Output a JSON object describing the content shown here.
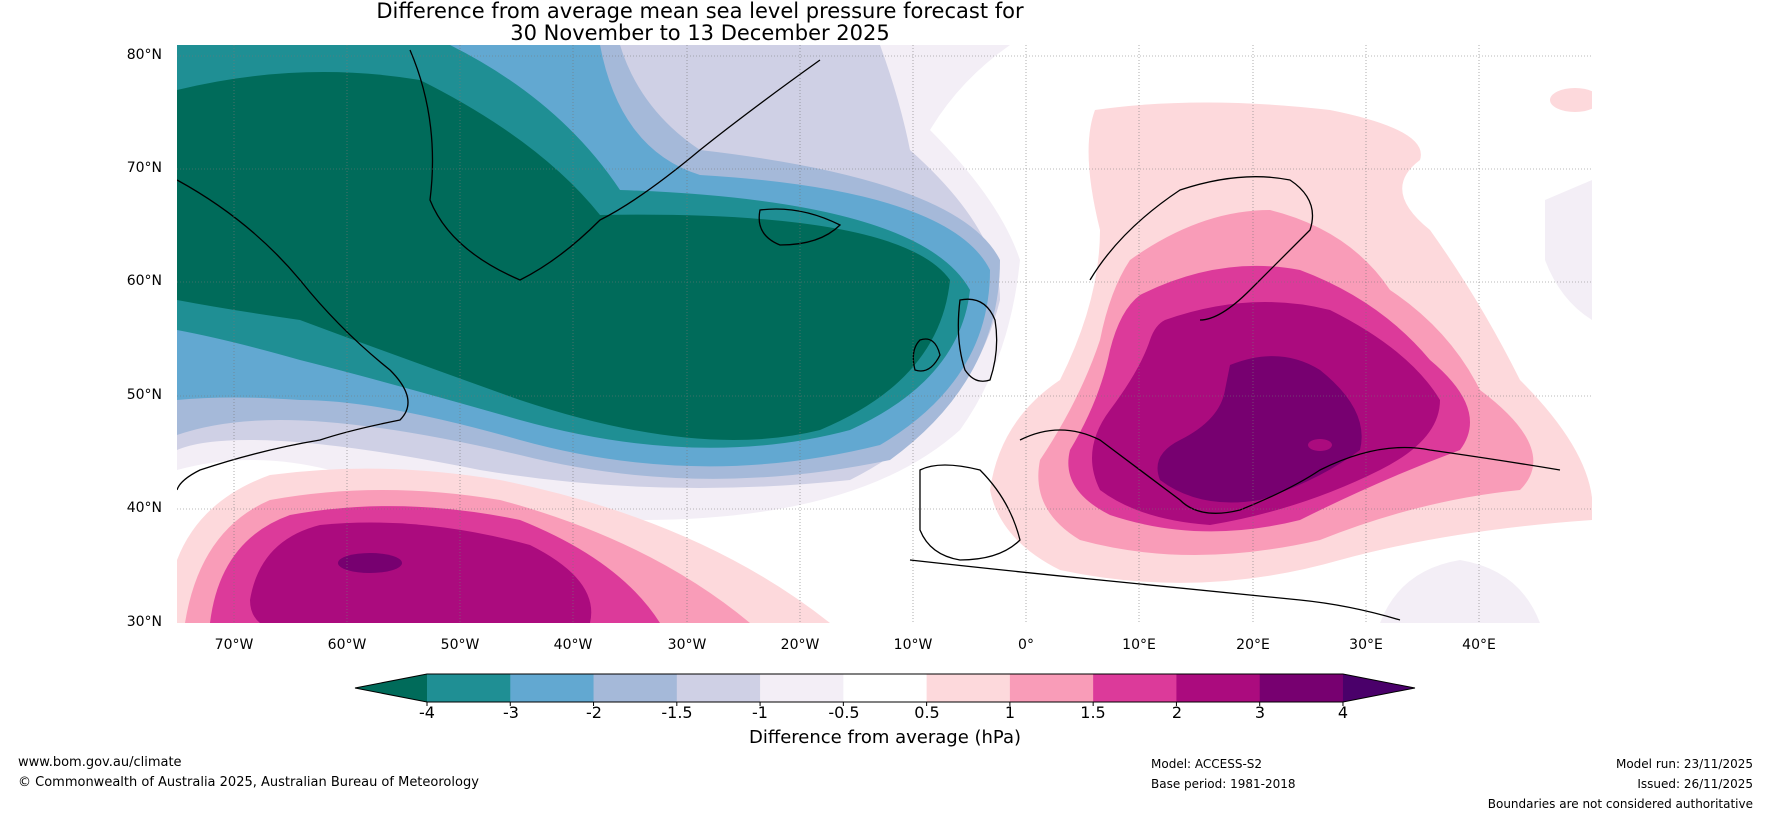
{
  "title": {
    "line1": "Difference from average mean sea level pressure forecast for",
    "line2": "30 November to 13 December 2025"
  },
  "map": {
    "lat_labels": [
      "80°N",
      "70°N",
      "60°N",
      "50°N",
      "40°N",
      "30°N"
    ],
    "lon_labels": [
      "70°W",
      "60°W",
      "50°W",
      "40°W",
      "30°W",
      "20°W",
      "10°W",
      "0°",
      "10°E",
      "20°E",
      "30°E",
      "40°E"
    ],
    "lat_range": [
      30,
      81
    ],
    "lon_range": [
      -75,
      50
    ],
    "anomaly_regions": [
      {
        "name": "North Atlantic low anomaly",
        "value": -4
      },
      {
        "name": "Subtropical Atlantic high anomaly",
        "value": 3
      },
      {
        "name": "Central Europe high anomaly",
        "value": 4
      }
    ]
  },
  "colorbar": {
    "ticks": [
      "-4",
      "-3",
      "-2",
      "-1.5",
      "-1",
      "-0.5",
      "0.5",
      "1",
      "1.5",
      "2",
      "3",
      "4"
    ],
    "colors": [
      "#006b5a",
      "#1f8f94",
      "#62a8d1",
      "#a5b9d9",
      "#cfd0e5",
      "#f3eef6",
      "#ffffff",
      "#fdd9dc",
      "#f99cb8",
      "#dc3a9a",
      "#ab0b7e",
      "#770070",
      "#4a006a"
    ],
    "label": "Difference from average (hPa)"
  },
  "footer": {
    "website": "www.bom.gov.au/climate",
    "copyright": "© Commonwealth of Australia 2025, Australian Bureau of Meteorology",
    "model": "Model: ACCESS-S2",
    "base_period": "Base period: 1981-2018",
    "model_run": "Model run: 23/11/2025",
    "issued": "Issued: 26/11/2025",
    "disclaimer": "Boundaries are not considered authoritative"
  }
}
